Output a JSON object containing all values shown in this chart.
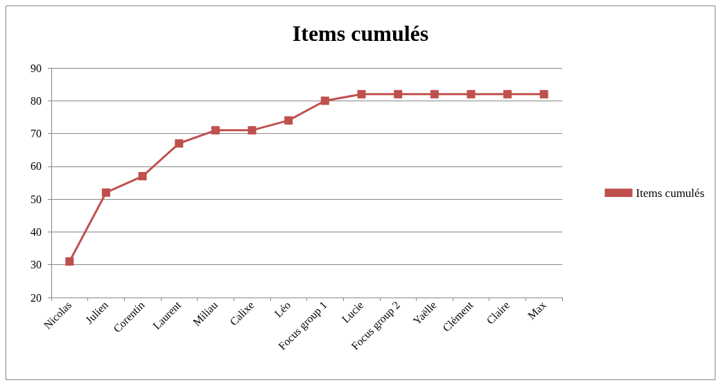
{
  "chart_data": {
    "type": "line",
    "title": "Items cumulés",
    "categories": [
      "Nicolas",
      "Julien",
      "Corentin",
      "Laurent",
      "Miliau",
      "Calixe",
      "Léo",
      "Focus group 1",
      "Lucie",
      "Focus group 2",
      "Yaëlle",
      "Clément",
      "Claire",
      "Max"
    ],
    "series": [
      {
        "name": "Items cumulés",
        "color": "#c0504d",
        "values": [
          31,
          52,
          57,
          67,
          71,
          71,
          74,
          80,
          82,
          82,
          82,
          82,
          82,
          82
        ]
      }
    ],
    "ylim": [
      20,
      90
    ],
    "yticks": [
      20,
      30,
      40,
      50,
      60,
      70,
      80,
      90
    ],
    "grid": "y",
    "legend": "right",
    "marker": "square",
    "line_style": "solid"
  }
}
